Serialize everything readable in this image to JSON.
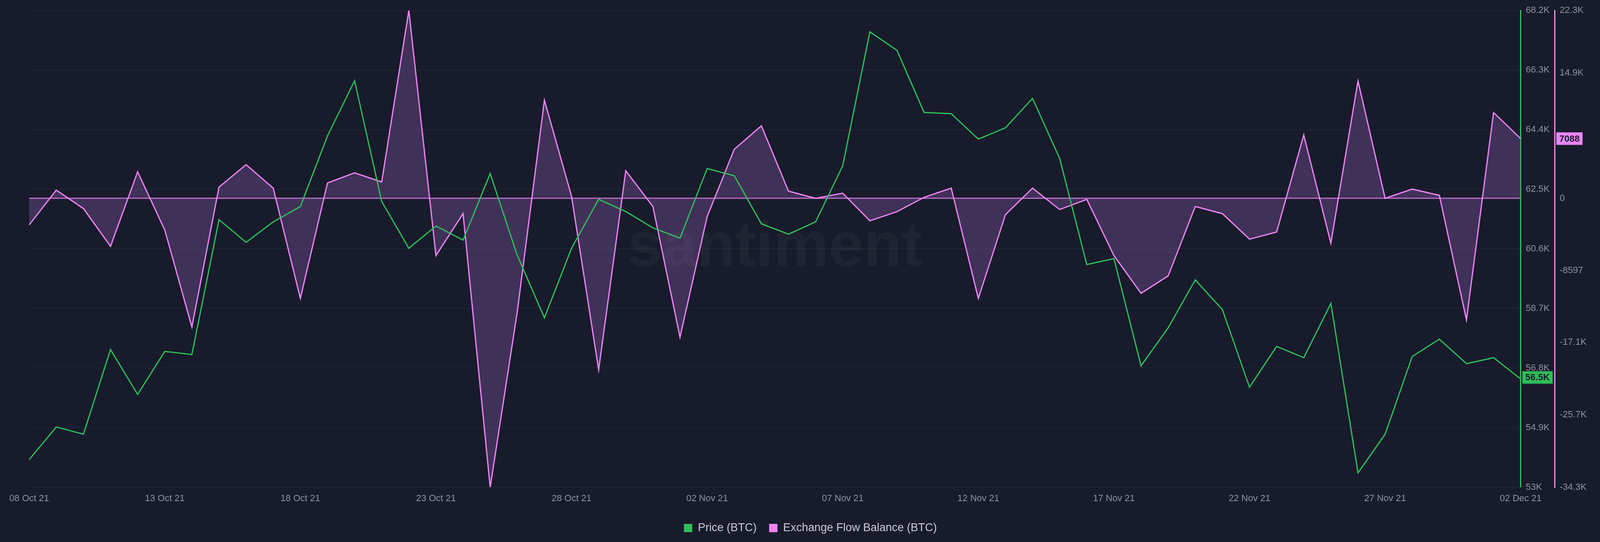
{
  "chart_data": {
    "type": "line",
    "categories": [
      "08 Oct 21",
      null,
      null,
      null,
      null,
      "13 Oct 21",
      null,
      null,
      null,
      null,
      "18 Oct 21",
      null,
      null,
      null,
      null,
      "23 Oct 21",
      null,
      null,
      null,
      null,
      "28 Oct 21",
      null,
      null,
      null,
      null,
      "02 Nov 21",
      null,
      null,
      null,
      null,
      "07 Nov 21",
      null,
      null,
      null,
      null,
      "12 Nov 21",
      null,
      null,
      null,
      null,
      "17 Nov 21",
      null,
      null,
      null,
      null,
      "22 Nov 21",
      null,
      null,
      null,
      null,
      "27 Nov 21",
      null,
      null,
      null,
      null,
      "02 Dec 21"
    ],
    "series": [
      {
        "name": "Price (BTC)",
        "color": "#2ebd59",
        "axis": "y",
        "type": "line",
        "values": [
          53880,
          54920,
          54690,
          57390,
          55960,
          57330,
          57230,
          61530,
          60810,
          61460,
          61950,
          64200,
          65960,
          62110,
          60620,
          61330,
          60880,
          63000,
          60390,
          58400,
          60620,
          62180,
          61790,
          61270,
          60940,
          63160,
          62930,
          61400,
          61070,
          61460,
          63250,
          67520,
          66930,
          64950,
          64910,
          64100,
          64460,
          65400,
          63480,
          60100,
          60290,
          56870,
          58080,
          59610,
          58660,
          56190,
          57490,
          57130,
          58860,
          53460,
          54690,
          57170,
          57720,
          56940,
          57130,
          56450
        ]
      },
      {
        "name": "Exchange Flow Balance (BTC)",
        "color": "#ee84f5",
        "axis": "y2",
        "type": "area",
        "values": [
          -3150,
          970,
          -1210,
          -5700,
          3150,
          -3760,
          -15270,
          1330,
          4000,
          1210,
          -11880,
          1820,
          3030,
          1940,
          22300,
          -6790,
          -1820,
          -34300,
          -13450,
          11640,
          240,
          -20360,
          3270,
          -970,
          -16480,
          -2180,
          5820,
          8610,
          850,
          0,
          610,
          -2670,
          -1580,
          120,
          1210,
          -11880,
          -1940,
          1210,
          -1330,
          -120,
          -6790,
          -11270,
          -9210,
          -970,
          -1820,
          -4850,
          -4000,
          7520,
          -5330,
          13940,
          0,
          1090,
          360,
          -14420,
          10180,
          7088
        ]
      }
    ],
    "ylim": [
      53000,
      68200
    ],
    "yticks": [
      {
        "value": 53000,
        "label": "53K"
      },
      {
        "value": 54900,
        "label": "54.9K"
      },
      {
        "value": 56800,
        "label": "56.8K"
      },
      {
        "value": 58700,
        "label": "58.7K"
      },
      {
        "value": 60600,
        "label": "60.6K"
      },
      {
        "value": 62500,
        "label": "62.5K"
      },
      {
        "value": 64400,
        "label": "64.4K"
      },
      {
        "value": 66300,
        "label": "66.3K"
      },
      {
        "value": 68200,
        "label": "68.2K"
      }
    ],
    "y2lim": [
      -34300,
      22300
    ],
    "y2ticks": [
      {
        "value": -34300,
        "label": "-34.3K"
      },
      {
        "value": -25700,
        "label": "-25.7K"
      },
      {
        "value": -17100,
        "label": "-17.1K"
      },
      -8597,
      0,
      {
        "value": 14900,
        "label": "14.9K"
      },
      {
        "value": 22300,
        "label": "22.3K"
      }
    ],
    "annotations": [
      {
        "text": "56.5K",
        "axis": "y",
        "value": 56500
      },
      {
        "text": "7088",
        "axis": "y2",
        "value": 7088
      },
      {
        "text": "santiment"
      }
    ],
    "grid": true,
    "legend": "bottom"
  }
}
